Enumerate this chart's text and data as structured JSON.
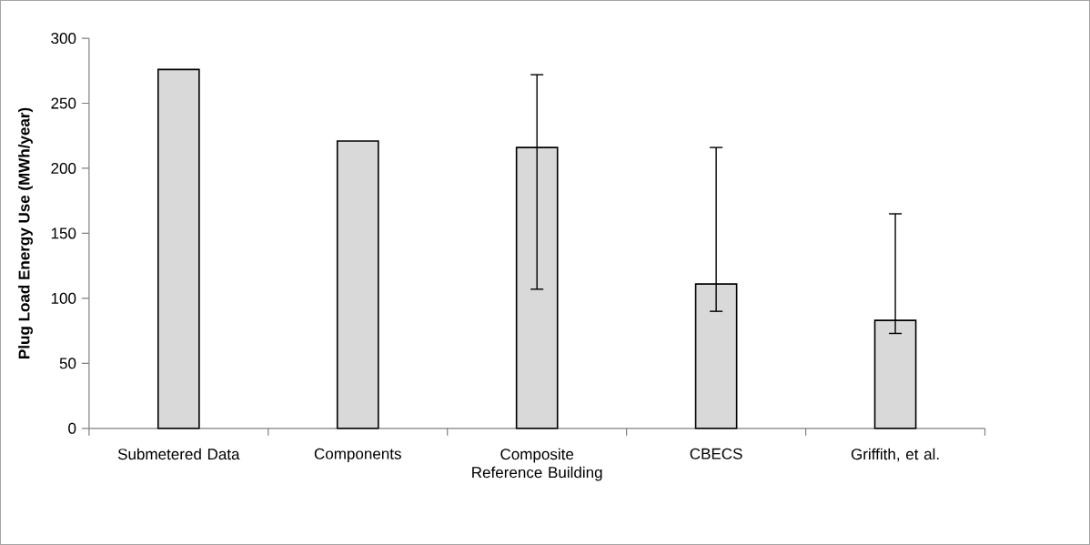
{
  "chart_data": {
    "type": "bar",
    "ylabel": "Plug Load Energy Use (MWh/year)",
    "categories": [
      "Submetered Data",
      "Components",
      "Composite Reference Building",
      "CBECS",
      "Griffith, et al."
    ],
    "values": [
      276,
      221,
      216,
      111,
      83
    ],
    "errors": [
      null,
      null,
      [
        107,
        272
      ],
      [
        90,
        216
      ],
      [
        73,
        165
      ]
    ],
    "color": "#d9d9d9",
    "ylim": [
      0,
      300
    ],
    "yticks": [
      0,
      50,
      100,
      150,
      200,
      250,
      300
    ],
    "grid": false
  }
}
